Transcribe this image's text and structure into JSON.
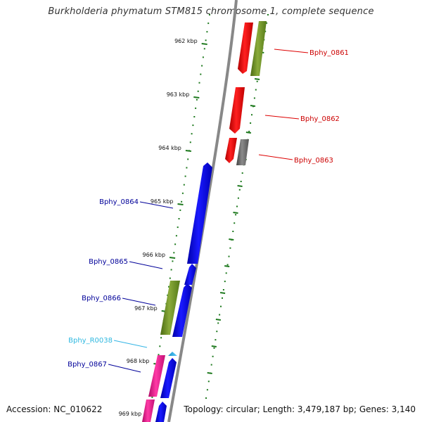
{
  "title": "Burkholderia phymatum STM815 chromosome 1, complete sequence",
  "footer": {
    "accession": "Accession: NC_010622",
    "summary": "Topology: circular; Length: 3,479,187 bp; Genes: 3,140"
  },
  "colors": {
    "backbone": "#888888",
    "tick": "#1f7a1f",
    "red": "#ff0000",
    "olive": "#6b8e23",
    "gray": "#666666",
    "blue": "#0000ee",
    "pink": "#e8188c",
    "cyan": "#33b5e5",
    "label_red": "#cc0000",
    "label_blue": "#000099",
    "label_cyan": "#2eb8e0"
  },
  "ticks": [
    {
      "label": "962 kbp"
    },
    {
      "label": "963 kbp"
    },
    {
      "label": "964 kbp"
    },
    {
      "label": "965 kbp"
    },
    {
      "label": "966 kbp"
    },
    {
      "label": "967 kbp"
    },
    {
      "label": "968 kbp"
    },
    {
      "label": "969 kbp"
    }
  ],
  "genes": [
    {
      "name": "Bphy_0861",
      "color": "label_red"
    },
    {
      "name": "Bphy_0862",
      "color": "label_red"
    },
    {
      "name": "Bphy_0863",
      "color": "label_red"
    },
    {
      "name": "Bphy_0864",
      "color": "label_blue"
    },
    {
      "name": "Bphy_0865",
      "color": "label_blue"
    },
    {
      "name": "Bphy_0866",
      "color": "label_blue"
    },
    {
      "name": "Bphy_R0038",
      "color": "label_cyan"
    },
    {
      "name": "Bphy_0867",
      "color": "label_blue"
    }
  ]
}
